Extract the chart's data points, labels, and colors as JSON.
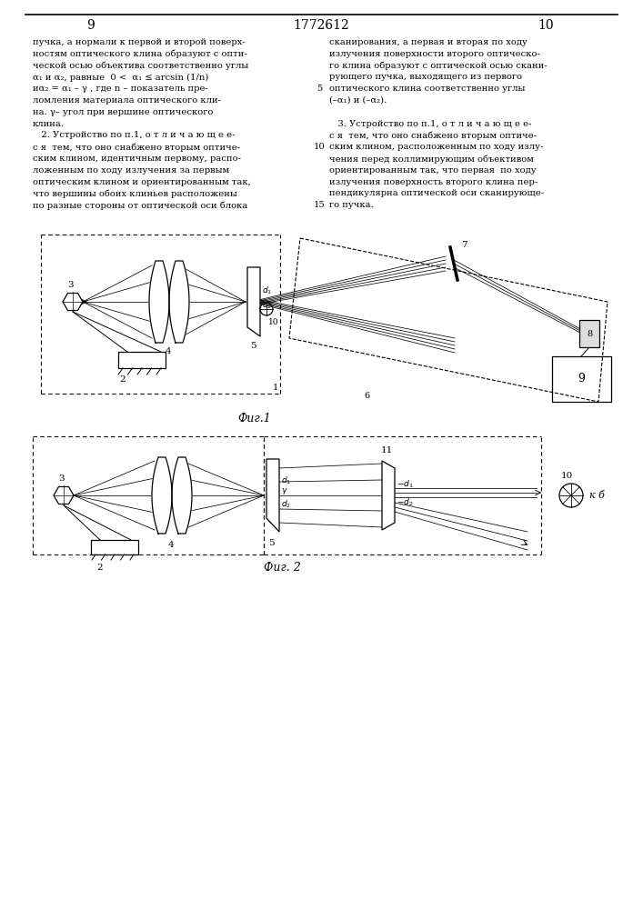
{
  "page_number_left": "9",
  "page_number_center": "1772612",
  "page_number_right": "10",
  "bg_color": "#ffffff",
  "fig1_caption": "Фиг.1",
  "fig2_caption": "Фиг. 2",
  "text_left": [
    "пучка, а нормали к первой и второй поверх-",
    "ностям оптического клина образуют с опти-",
    "ческой осью объектива соответственно углы",
    "α₁ и α₂, равные  0 <  α₁ ≤ arcsin (1/n)",
    "иα₂ = α₁ – γ , где n – показатель пре-",
    "ломления материала оптического кли-",
    "на. γ– угол при вершине оптического",
    "клина.",
    "   2. Устройство по п.1, о т л и ч а ю щ е е-",
    "с я  тем, что оно снабжено вторым оптиче-",
    "ским клином, идентичным первому, распо-",
    "ложенным по ходу излучения за первым",
    "оптическим клином и ориентированным так,",
    "что вершины обоих клиньев расположены",
    "по разные стороны от оптической оси блока"
  ],
  "text_right": [
    "сканирования, а первая и вторая по ходу",
    "излучения поверхности второго оптическо-",
    "го клина образуют с оптической осью скани-",
    "рующего пучка, выходящего из первого",
    "оптического клина соответственно углы",
    "(–α₁) и (–α₂).",
    "",
    "   3. Устройство по п.1, о т л и ч а ю щ е е-",
    "с я  тем, что оно снабжено вторым оптиче-",
    "ским клином, расположенным по ходу излу-",
    "чения перед коллимирующим объективом",
    "ориентированным так, что первая  по ходу",
    "излучения поверхность второго клина пер-",
    "пендикулярна оптической оси сканирующе-",
    "го пучка."
  ],
  "line_numbers": [
    "5",
    "10",
    "15"
  ],
  "line_number_rows": [
    4,
    9,
    14
  ]
}
